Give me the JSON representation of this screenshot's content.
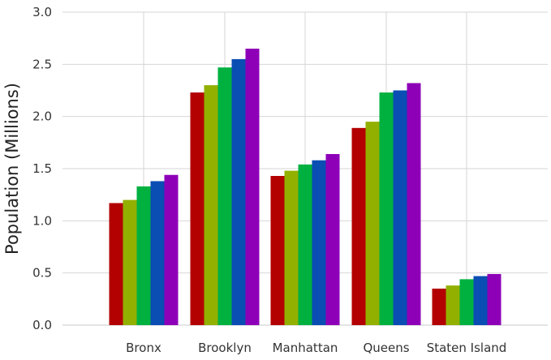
{
  "chart_data": {
    "type": "bar",
    "title": "",
    "xlabel": "",
    "ylabel": "Population (Millions)",
    "categories": [
      "Bronx",
      "Brooklyn",
      "Manhattan",
      "Queens",
      "Staten Island"
    ],
    "series": [
      {
        "color": "#b30000",
        "values": [
          1.17,
          2.23,
          1.43,
          1.89,
          0.35
        ]
      },
      {
        "color": "#92b000",
        "values": [
          1.2,
          2.3,
          1.48,
          1.95,
          0.38
        ]
      },
      {
        "color": "#00b140",
        "values": [
          1.33,
          2.47,
          1.54,
          2.23,
          0.44
        ]
      },
      {
        "color": "#0a4db3",
        "values": [
          1.38,
          2.55,
          1.58,
          2.25,
          0.47
        ]
      },
      {
        "color": "#8e00b8",
        "values": [
          1.44,
          2.65,
          1.64,
          2.32,
          0.49
        ]
      }
    ],
    "ylim": [
      0,
      3.0
    ],
    "yticks": [
      "0.0",
      "0.5",
      "1.0",
      "1.5",
      "2.0",
      "2.5",
      "3.0"
    ],
    "grid": true,
    "legend": "none"
  }
}
